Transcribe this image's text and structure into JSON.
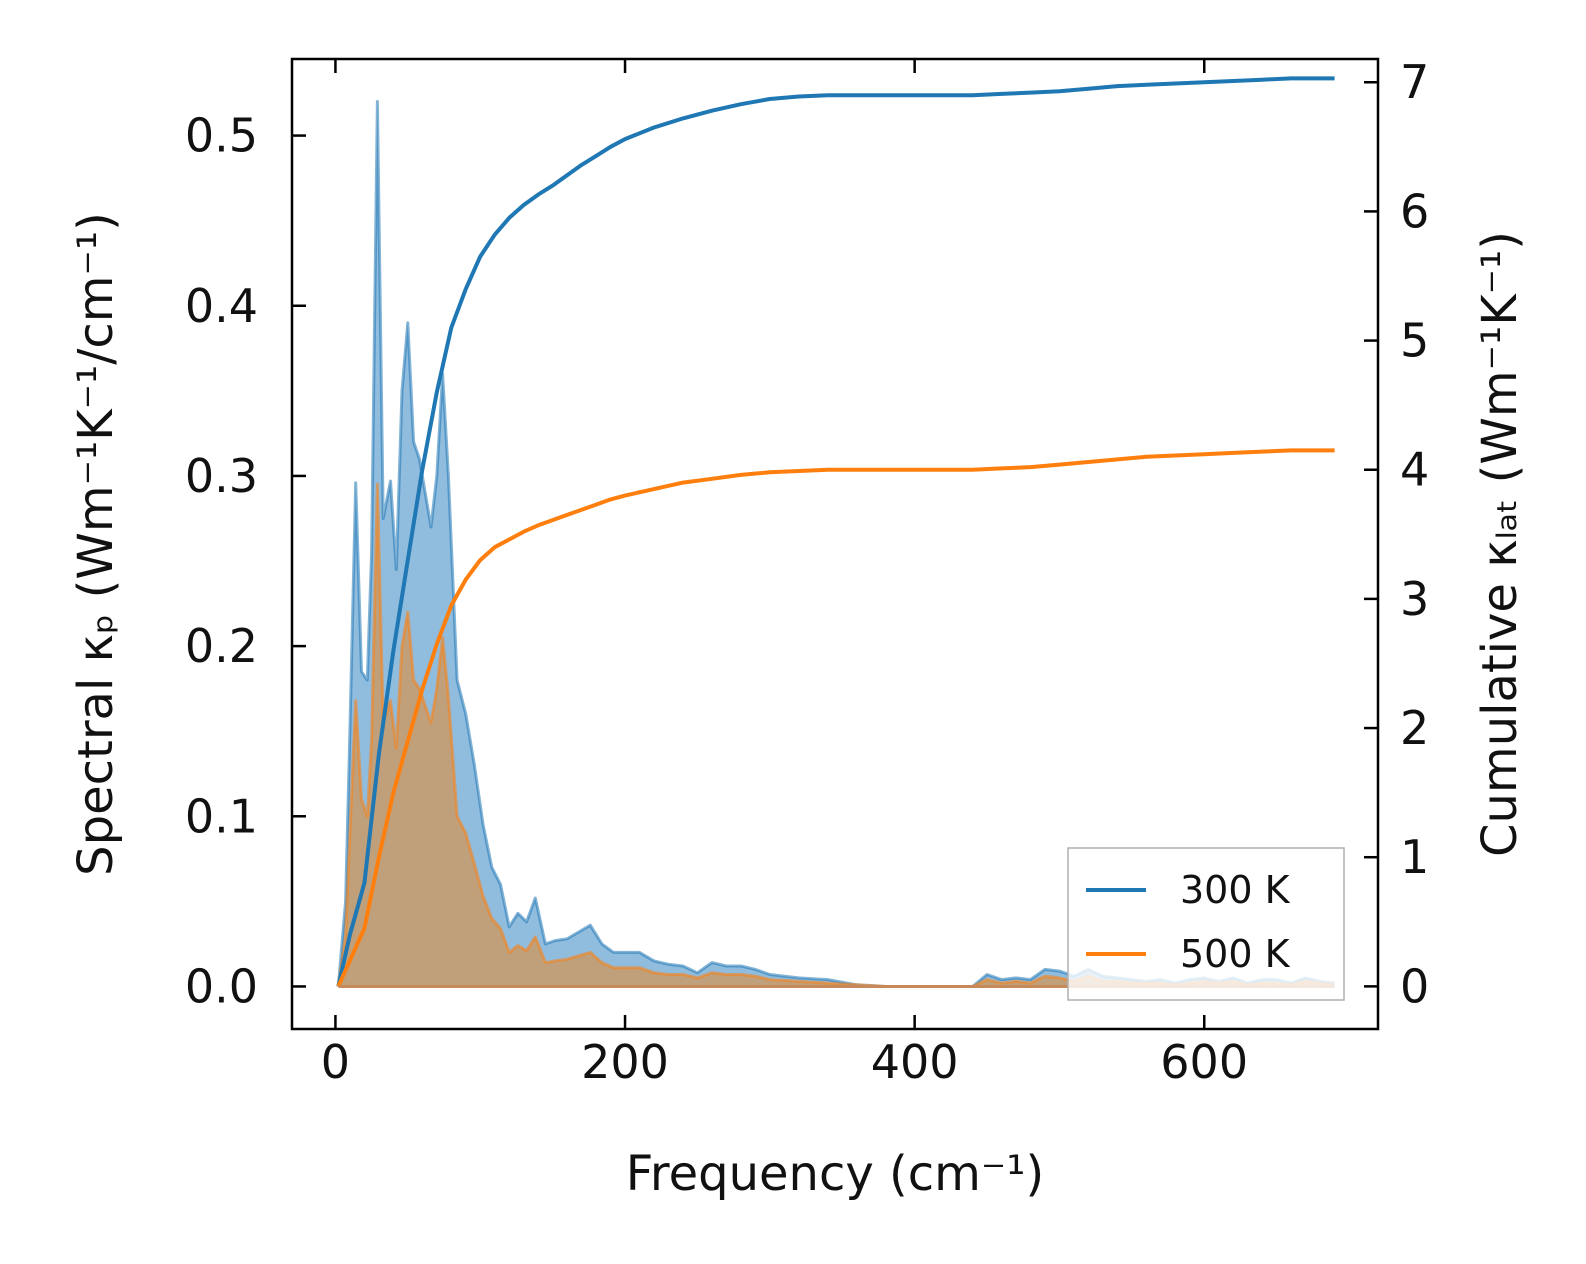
{
  "chart_data": {
    "type": "line",
    "title": "",
    "xlabel": "Frequency (cm⁻¹)",
    "ylabel_left": "Spectral κₚ (Wm⁻¹K⁻¹/cm⁻¹)",
    "ylabel_right": "Cumulative κₗₐₜ (Wm⁻¹K⁻¹)",
    "xlim": [
      -30,
      720
    ],
    "ylim_left": [
      -0.025,
      0.545
    ],
    "ylim_right": [
      -0.33,
      7.18
    ],
    "xticks": [
      0,
      200,
      400,
      600
    ],
    "xtick_labels": [
      "0",
      "200",
      "400",
      "600"
    ],
    "yticks_left": [
      0.0,
      0.1,
      0.2,
      0.3,
      0.4,
      0.5
    ],
    "ytick_labels_left": [
      "0.0",
      "0.1",
      "0.2",
      "0.3",
      "0.4",
      "0.5"
    ],
    "yticks_right": [
      0,
      1,
      2,
      3,
      4,
      5,
      6,
      7
    ],
    "ytick_labels_right": [
      "0",
      "1",
      "2",
      "3",
      "4",
      "5",
      "6",
      "7"
    ],
    "grid": false,
    "legend_position": "lower-right",
    "series": [
      {
        "name": "300 K",
        "color": "#1f77b4",
        "fill": "#8ab8dc",
        "spectral_x": [
          2,
          7,
          10,
          14,
          18,
          22,
          25,
          29,
          33,
          38,
          42,
          46,
          50,
          54,
          58,
          62,
          66,
          70,
          74,
          78,
          84,
          90,
          96,
          102,
          108,
          114,
          120,
          126,
          132,
          138,
          145,
          152,
          160,
          168,
          176,
          184,
          192,
          200,
          210,
          220,
          230,
          240,
          250,
          260,
          270,
          280,
          290,
          300,
          320,
          340,
          360,
          380,
          400,
          420,
          440,
          450,
          460,
          470,
          480,
          490,
          500,
          510,
          520,
          530,
          540,
          550,
          560,
          570,
          580,
          590,
          600,
          610,
          620,
          630,
          640,
          650,
          660,
          670,
          680,
          690
        ],
        "spectral_y": [
          0.0,
          0.05,
          0.15,
          0.296,
          0.185,
          0.18,
          0.255,
          0.52,
          0.275,
          0.297,
          0.245,
          0.35,
          0.39,
          0.32,
          0.31,
          0.29,
          0.27,
          0.3,
          0.36,
          0.3,
          0.18,
          0.16,
          0.13,
          0.095,
          0.07,
          0.06,
          0.035,
          0.043,
          0.038,
          0.052,
          0.025,
          0.027,
          0.028,
          0.032,
          0.036,
          0.025,
          0.02,
          0.02,
          0.02,
          0.015,
          0.013,
          0.012,
          0.008,
          0.014,
          0.012,
          0.012,
          0.01,
          0.007,
          0.005,
          0.004,
          0.001,
          0.0,
          0.0,
          0.0,
          0.0,
          0.007,
          0.004,
          0.005,
          0.004,
          0.01,
          0.009,
          0.006,
          0.01,
          0.006,
          0.005,
          0.004,
          0.003,
          0.004,
          0.002,
          0.004,
          0.005,
          0.003,
          0.005,
          0.002,
          0.004,
          0.004,
          0.002,
          0.005,
          0.003,
          0.002
        ],
        "cumulative_x": [
          2,
          10,
          20,
          30,
          40,
          50,
          60,
          70,
          80,
          90,
          100,
          110,
          120,
          130,
          140,
          150,
          160,
          170,
          180,
          190,
          200,
          220,
          240,
          260,
          280,
          300,
          320,
          340,
          360,
          380,
          400,
          420,
          440,
          460,
          480,
          500,
          520,
          540,
          560,
          580,
          600,
          620,
          640,
          660,
          680,
          690
        ],
        "cumulative_y": [
          0.0,
          0.4,
          0.8,
          1.8,
          2.6,
          3.3,
          4.0,
          4.6,
          5.1,
          5.4,
          5.65,
          5.82,
          5.95,
          6.05,
          6.13,
          6.2,
          6.28,
          6.36,
          6.43,
          6.5,
          6.56,
          6.65,
          6.72,
          6.78,
          6.83,
          6.87,
          6.89,
          6.9,
          6.9,
          6.9,
          6.9,
          6.9,
          6.9,
          6.91,
          6.92,
          6.93,
          6.95,
          6.97,
          6.98,
          6.99,
          7.0,
          7.01,
          7.02,
          7.03,
          7.03,
          7.03
        ]
      },
      {
        "name": "500 K",
        "color": "#ff7f0e",
        "fill": "#c49c6f",
        "spectral_x": [
          2,
          7,
          10,
          14,
          18,
          22,
          25,
          29,
          33,
          38,
          42,
          46,
          50,
          54,
          58,
          62,
          66,
          70,
          74,
          78,
          84,
          90,
          96,
          102,
          108,
          114,
          120,
          126,
          132,
          138,
          145,
          152,
          160,
          168,
          176,
          184,
          192,
          200,
          210,
          220,
          230,
          240,
          250,
          260,
          270,
          280,
          290,
          300,
          320,
          340,
          360,
          380,
          400,
          420,
          440,
          450,
          460,
          470,
          480,
          490,
          500,
          510,
          520,
          530,
          540,
          550,
          560,
          570,
          580,
          590,
          600,
          610,
          620,
          630,
          640,
          650,
          660,
          670,
          680,
          690
        ],
        "spectral_y": [
          0.0,
          0.03,
          0.09,
          0.168,
          0.11,
          0.1,
          0.145,
          0.295,
          0.155,
          0.168,
          0.14,
          0.2,
          0.22,
          0.18,
          0.175,
          0.165,
          0.155,
          0.175,
          0.205,
          0.17,
          0.1,
          0.09,
          0.072,
          0.053,
          0.04,
          0.034,
          0.02,
          0.024,
          0.021,
          0.029,
          0.014,
          0.015,
          0.016,
          0.018,
          0.02,
          0.014,
          0.011,
          0.011,
          0.011,
          0.008,
          0.007,
          0.007,
          0.005,
          0.008,
          0.007,
          0.007,
          0.006,
          0.004,
          0.003,
          0.002,
          0.001,
          0.0,
          0.0,
          0.0,
          0.0,
          0.004,
          0.002,
          0.003,
          0.002,
          0.006,
          0.005,
          0.003,
          0.006,
          0.003,
          0.003,
          0.002,
          0.002,
          0.002,
          0.001,
          0.002,
          0.003,
          0.002,
          0.003,
          0.001,
          0.002,
          0.002,
          0.001,
          0.003,
          0.002,
          0.001
        ],
        "cumulative_x": [
          2,
          10,
          20,
          30,
          40,
          50,
          60,
          70,
          80,
          90,
          100,
          110,
          120,
          130,
          140,
          150,
          160,
          170,
          180,
          190,
          200,
          220,
          240,
          260,
          280,
          300,
          320,
          340,
          360,
          380,
          400,
          420,
          440,
          460,
          480,
          500,
          520,
          540,
          560,
          580,
          600,
          620,
          640,
          660,
          680,
          690
        ],
        "cumulative_y": [
          0.0,
          0.2,
          0.45,
          1.0,
          1.5,
          1.9,
          2.3,
          2.65,
          2.95,
          3.15,
          3.3,
          3.4,
          3.46,
          3.52,
          3.57,
          3.61,
          3.65,
          3.69,
          3.73,
          3.77,
          3.8,
          3.85,
          3.9,
          3.93,
          3.96,
          3.98,
          3.99,
          4.0,
          4.0,
          4.0,
          4.0,
          4.0,
          4.0,
          4.01,
          4.02,
          4.04,
          4.06,
          4.08,
          4.1,
          4.11,
          4.12,
          4.13,
          4.14,
          4.15,
          4.15,
          4.15
        ]
      }
    ]
  }
}
